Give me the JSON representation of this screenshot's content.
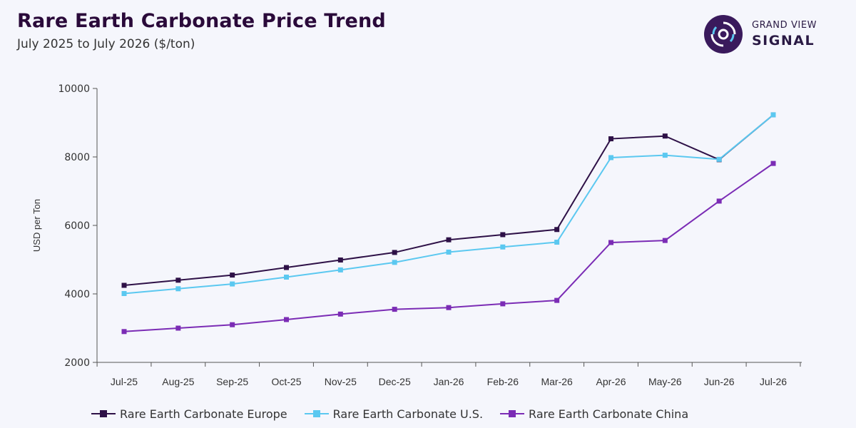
{
  "header": {
    "title": "Rare Earth Carbonate Price Trend",
    "subtitle": "July 2025 to July 2026 ($/ton)"
  },
  "brand": {
    "line1": "GRAND VIEW",
    "line2": "SIGNAL",
    "icon": "signal-logo-icon",
    "color": "#3a1a5c"
  },
  "chart_data": {
    "type": "line",
    "title": "Rare Earth Carbonate Price Trend",
    "subtitle": "July 2025 to July 2026 ($/ton)",
    "xlabel": "",
    "ylabel": "USD per Ton",
    "categories": [
      "Jul-25",
      "Aug-25",
      "Sep-25",
      "Oct-25",
      "Nov-25",
      "Dec-25",
      "Jan-26",
      "Feb-26",
      "Mar-26",
      "Apr-26",
      "May-26",
      "Jun-26",
      "Jul-26"
    ],
    "ylim": [
      2000,
      10000
    ],
    "yticks": [
      2000,
      4000,
      6000,
      8000,
      10000
    ],
    "grid": false,
    "legend_position": "bottom",
    "series": [
      {
        "name": "Rare Earth Carbonate Europe",
        "color": "#2e1147",
        "values": [
          4250,
          4400,
          4550,
          4770,
          4990,
          5210,
          5580,
          5730,
          5880,
          8530,
          8610,
          7920,
          9230
        ]
      },
      {
        "name": "Rare Earth Carbonate U.S.",
        "color": "#5bc8f0",
        "values": [
          4010,
          4150,
          4290,
          4490,
          4700,
          4920,
          5220,
          5370,
          5510,
          7980,
          8050,
          7930,
          9230
        ]
      },
      {
        "name": "Rare Earth Carbonate China",
        "color": "#7b2cb5",
        "values": [
          2900,
          3000,
          3100,
          3250,
          3410,
          3550,
          3600,
          3710,
          3810,
          5500,
          5560,
          6710,
          7810
        ]
      }
    ]
  }
}
